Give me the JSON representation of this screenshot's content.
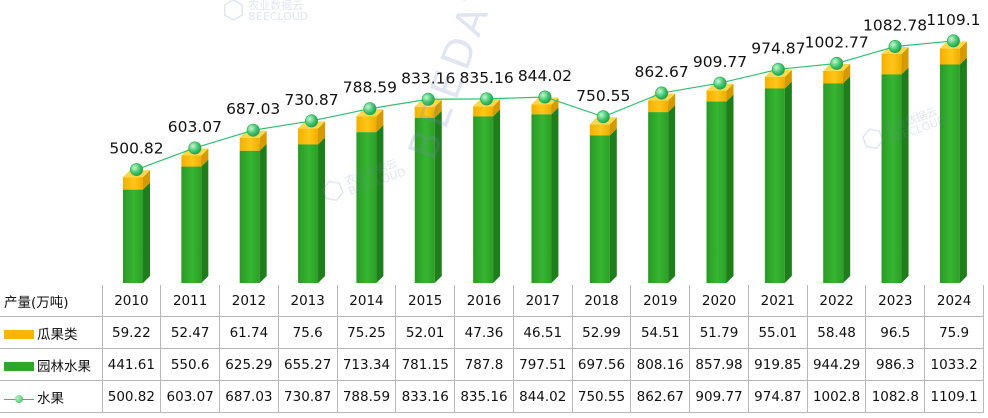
{
  "colors": {
    "gourd": "#f5b800",
    "orchard": "#2fa62a",
    "fruit_line": "#2fbf71",
    "marker": "#3cc66a"
  },
  "watermark": {
    "brand_cn": "农业数据云",
    "brand_en": "BEECLOUD",
    "brand_data": "BEEDATA"
  },
  "table": {
    "unit_label": "产量(万吨)"
  },
  "chart_data": {
    "type": "bar",
    "stacked": true,
    "categories": [
      "2010",
      "2011",
      "2012",
      "2013",
      "2014",
      "2015",
      "2016",
      "2017",
      "2018",
      "2019",
      "2020",
      "2021",
      "2022",
      "2023",
      "2024"
    ],
    "series": [
      {
        "name": "瓜果类",
        "kind": "bar",
        "values": [
          59.22,
          52.47,
          61.74,
          75.6,
          75.25,
          52.01,
          47.36,
          46.51,
          52.99,
          54.51,
          51.79,
          55.01,
          58.48,
          96.5,
          75.9
        ]
      },
      {
        "name": "园林水果",
        "kind": "bar",
        "values": [
          441.61,
          550.6,
          625.29,
          655.27,
          713.34,
          781.15,
          787.8,
          797.51,
          697.56,
          808.16,
          857.98,
          919.85,
          944.29,
          986.3,
          1033.2
        ]
      },
      {
        "name": "水果",
        "kind": "line",
        "values": [
          500.82,
          603.07,
          687.03,
          730.87,
          788.59,
          833.16,
          835.16,
          844.02,
          750.55,
          862.67,
          909.77,
          974.87,
          1002.77,
          1082.78,
          1109.1
        ]
      }
    ],
    "line_labels": [
      "500.82",
      "603.07",
      "687.03",
      "730.87",
      "788.59",
      "833.16",
      "835.16",
      "844.02",
      "750.55",
      "862.67",
      "909.77",
      "974.87",
      "1002.77",
      "1082.78",
      "1109.1"
    ],
    "table_rows": [
      [
        "59.22",
        "52.47",
        "61.74",
        "75.6",
        "75.25",
        "52.01",
        "47.36",
        "46.51",
        "52.99",
        "54.51",
        "51.79",
        "55.01",
        "58.48",
        "96.5",
        "75.9"
      ],
      [
        "441.61",
        "550.6",
        "625.29",
        "655.27",
        "713.34",
        "781.15",
        "787.8",
        "797.51",
        "697.56",
        "808.16",
        "857.98",
        "919.85",
        "944.29",
        "986.3",
        "1033.2"
      ],
      [
        "500.82",
        "603.07",
        "687.03",
        "730.87",
        "788.59",
        "833.16",
        "835.16",
        "844.02",
        "750.55",
        "862.67",
        "909.77",
        "974.87",
        "1002.8",
        "1082.8",
        "1109.1"
      ]
    ],
    "xlabel": "",
    "ylabel": "",
    "ylim": [
      0,
      1200
    ],
    "grid": false,
    "legend": "table-left"
  }
}
